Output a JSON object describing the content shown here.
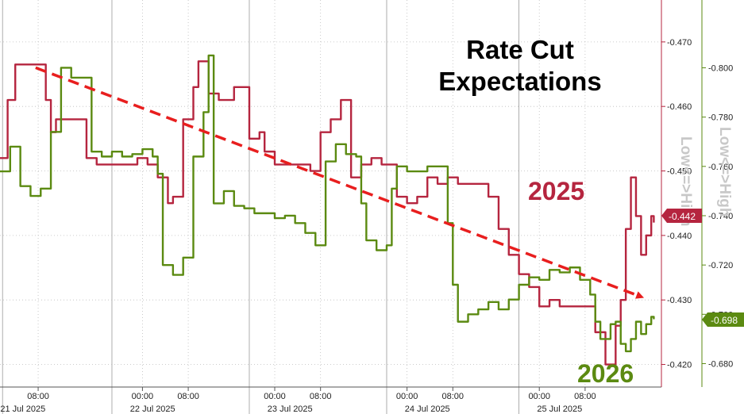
{
  "chart_data": {
    "type": "line",
    "title": "Rate Cut Expectations",
    "x_ticks_time": [
      "08:00",
      "00:00",
      "08:00",
      "00:00",
      "08:00",
      "00:00",
      "08:00",
      "00:00",
      "08:00"
    ],
    "x_ticks_date": [
      "21 Jul 2025",
      "22 Jul 2025",
      "23 Jul 2025",
      "24 Jul 2025",
      "25 Jul 2025"
    ],
    "x_range": [
      0,
      13
    ],
    "y_left_label": "Low<=>High",
    "y_right_label": "Low<=>High",
    "y_left_range": [
      -0.4165,
      -0.4765
    ],
    "y_right_range": [
      -0.6705,
      -0.8275
    ],
    "y_left_ticks": [
      "-0.470",
      "-0.460",
      "-0.450",
      "-0.440",
      "-0.430",
      "-0.420"
    ],
    "y_right_ticks": [
      "-0.800",
      "-0.780",
      "-0.760",
      "-0.740",
      "-0.720",
      "-0.700",
      "-0.680"
    ],
    "last_values": {
      "series_2025": "-0.442",
      "series_2026": "-0.698"
    },
    "trend_arrow": {
      "from": [
        0.7,
        -0.466
      ],
      "to": [
        12.6,
        -0.4305
      ],
      "color": "#e81e1e"
    },
    "grid": true,
    "series": [
      {
        "name": "2025",
        "axis": "left",
        "color": "#b5253f",
        "points": [
          [
            0,
            -0.452
          ],
          [
            0.15,
            -0.461
          ],
          [
            0.3,
            -0.4665
          ],
          [
            0.6,
            -0.4665
          ],
          [
            0.8,
            -0.4665
          ],
          [
            0.9,
            -0.461
          ],
          [
            1.0,
            -0.456
          ],
          [
            1.1,
            -0.458
          ],
          [
            1.3,
            -0.458
          ],
          [
            1.5,
            -0.458
          ],
          [
            1.7,
            -0.452
          ],
          [
            1.9,
            -0.451
          ],
          [
            2.1,
            -0.451
          ],
          [
            2.3,
            -0.451
          ],
          [
            2.5,
            -0.451
          ],
          [
            2.7,
            -0.452
          ],
          [
            2.9,
            -0.451
          ],
          [
            3.1,
            -0.449
          ],
          [
            3.3,
            -0.445
          ],
          [
            3.4,
            -0.446
          ],
          [
            3.6,
            -0.458
          ],
          [
            3.8,
            -0.463
          ],
          [
            3.9,
            -0.467
          ],
          [
            4.1,
            -0.462
          ],
          [
            4.3,
            -0.461
          ],
          [
            4.6,
            -0.463
          ],
          [
            4.9,
            -0.455
          ],
          [
            5.1,
            -0.456
          ],
          [
            5.2,
            -0.453
          ],
          [
            5.4,
            -0.451
          ],
          [
            5.7,
            -0.451
          ],
          [
            5.9,
            -0.451
          ],
          [
            6.1,
            -0.45
          ],
          [
            6.3,
            -0.456
          ],
          [
            6.5,
            -0.458
          ],
          [
            6.7,
            -0.461
          ],
          [
            6.9,
            -0.449
          ],
          [
            7.1,
            -0.451
          ],
          [
            7.3,
            -0.452
          ],
          [
            7.5,
            -0.451
          ],
          [
            7.8,
            -0.446
          ],
          [
            8.0,
            -0.445
          ],
          [
            8.2,
            -0.446
          ],
          [
            8.4,
            -0.449
          ],
          [
            8.6,
            -0.448
          ],
          [
            8.8,
            -0.449
          ],
          [
            9.0,
            -0.448
          ],
          [
            9.2,
            -0.448
          ],
          [
            9.4,
            -0.448
          ],
          [
            9.6,
            -0.446
          ],
          [
            9.8,
            -0.441
          ],
          [
            10.0,
            -0.437
          ],
          [
            10.2,
            -0.434
          ],
          [
            10.4,
            -0.432
          ],
          [
            10.6,
            -0.429
          ],
          [
            10.8,
            -0.43
          ],
          [
            11.0,
            -0.429
          ],
          [
            11.2,
            -0.429
          ],
          [
            11.5,
            -0.429
          ],
          [
            11.7,
            -0.425
          ],
          [
            11.9,
            -0.42
          ],
          [
            12.1,
            -0.426
          ],
          [
            12.2,
            -0.43
          ],
          [
            12.3,
            -0.441
          ],
          [
            12.4,
            -0.449
          ],
          [
            12.5,
            -0.443
          ],
          [
            12.6,
            -0.437
          ],
          [
            12.7,
            -0.44
          ],
          [
            12.8,
            -0.443
          ],
          [
            12.85,
            -0.442
          ]
        ]
      },
      {
        "name": "2026",
        "axis": "right",
        "color": "#5b8a11",
        "points": [
          [
            0,
            -0.758
          ],
          [
            0.2,
            -0.768
          ],
          [
            0.4,
            -0.752
          ],
          [
            0.6,
            -0.748
          ],
          [
            0.8,
            -0.751
          ],
          [
            1.0,
            -0.774
          ],
          [
            1.2,
            -0.8
          ],
          [
            1.4,
            -0.796
          ],
          [
            1.6,
            -0.796
          ],
          [
            1.8,
            -0.766
          ],
          [
            2.0,
            -0.764
          ],
          [
            2.2,
            -0.766
          ],
          [
            2.4,
            -0.764
          ],
          [
            2.6,
            -0.765
          ],
          [
            2.8,
            -0.767
          ],
          [
            3.0,
            -0.764
          ],
          [
            3.1,
            -0.757
          ],
          [
            3.2,
            -0.72
          ],
          [
            3.4,
            -0.716
          ],
          [
            3.6,
            -0.723
          ],
          [
            3.8,
            -0.764
          ],
          [
            4.0,
            -0.782
          ],
          [
            4.1,
            -0.805
          ],
          [
            4.2,
            -0.745
          ],
          [
            4.4,
            -0.75
          ],
          [
            4.6,
            -0.744
          ],
          [
            4.8,
            -0.743
          ],
          [
            5.0,
            -0.741
          ],
          [
            5.2,
            -0.741
          ],
          [
            5.4,
            -0.739
          ],
          [
            5.6,
            -0.74
          ],
          [
            5.8,
            -0.737
          ],
          [
            6.0,
            -0.733
          ],
          [
            6.2,
            -0.728
          ],
          [
            6.4,
            -0.762
          ],
          [
            6.6,
            -0.769
          ],
          [
            6.8,
            -0.765
          ],
          [
            7.0,
            -0.764
          ],
          [
            7.1,
            -0.745
          ],
          [
            7.2,
            -0.73
          ],
          [
            7.4,
            -0.726
          ],
          [
            7.6,
            -0.728
          ],
          [
            7.7,
            -0.751
          ],
          [
            7.8,
            -0.76
          ],
          [
            8.0,
            -0.758
          ],
          [
            8.2,
            -0.758
          ],
          [
            8.4,
            -0.76
          ],
          [
            8.6,
            -0.76
          ],
          [
            8.8,
            -0.737
          ],
          [
            8.9,
            -0.712
          ],
          [
            9.0,
            -0.697
          ],
          [
            9.2,
            -0.7
          ],
          [
            9.4,
            -0.702
          ],
          [
            9.6,
            -0.705
          ],
          [
            9.8,
            -0.702
          ],
          [
            10.0,
            -0.706
          ],
          [
            10.2,
            -0.712
          ],
          [
            10.4,
            -0.715
          ],
          [
            10.6,
            -0.714
          ],
          [
            10.8,
            -0.718
          ],
          [
            11.0,
            -0.717
          ],
          [
            11.2,
            -0.719
          ],
          [
            11.4,
            -0.714
          ],
          [
            11.6,
            -0.708
          ],
          [
            11.7,
            -0.697
          ],
          [
            11.8,
            -0.69
          ],
          [
            12.0,
            -0.696
          ],
          [
            12.1,
            -0.697
          ],
          [
            12.2,
            -0.688
          ],
          [
            12.3,
            -0.685
          ],
          [
            12.4,
            -0.69
          ],
          [
            12.5,
            -0.697
          ],
          [
            12.6,
            -0.692
          ],
          [
            12.7,
            -0.696
          ],
          [
            12.8,
            -0.699
          ],
          [
            12.85,
            -0.698
          ]
        ]
      }
    ]
  }
}
